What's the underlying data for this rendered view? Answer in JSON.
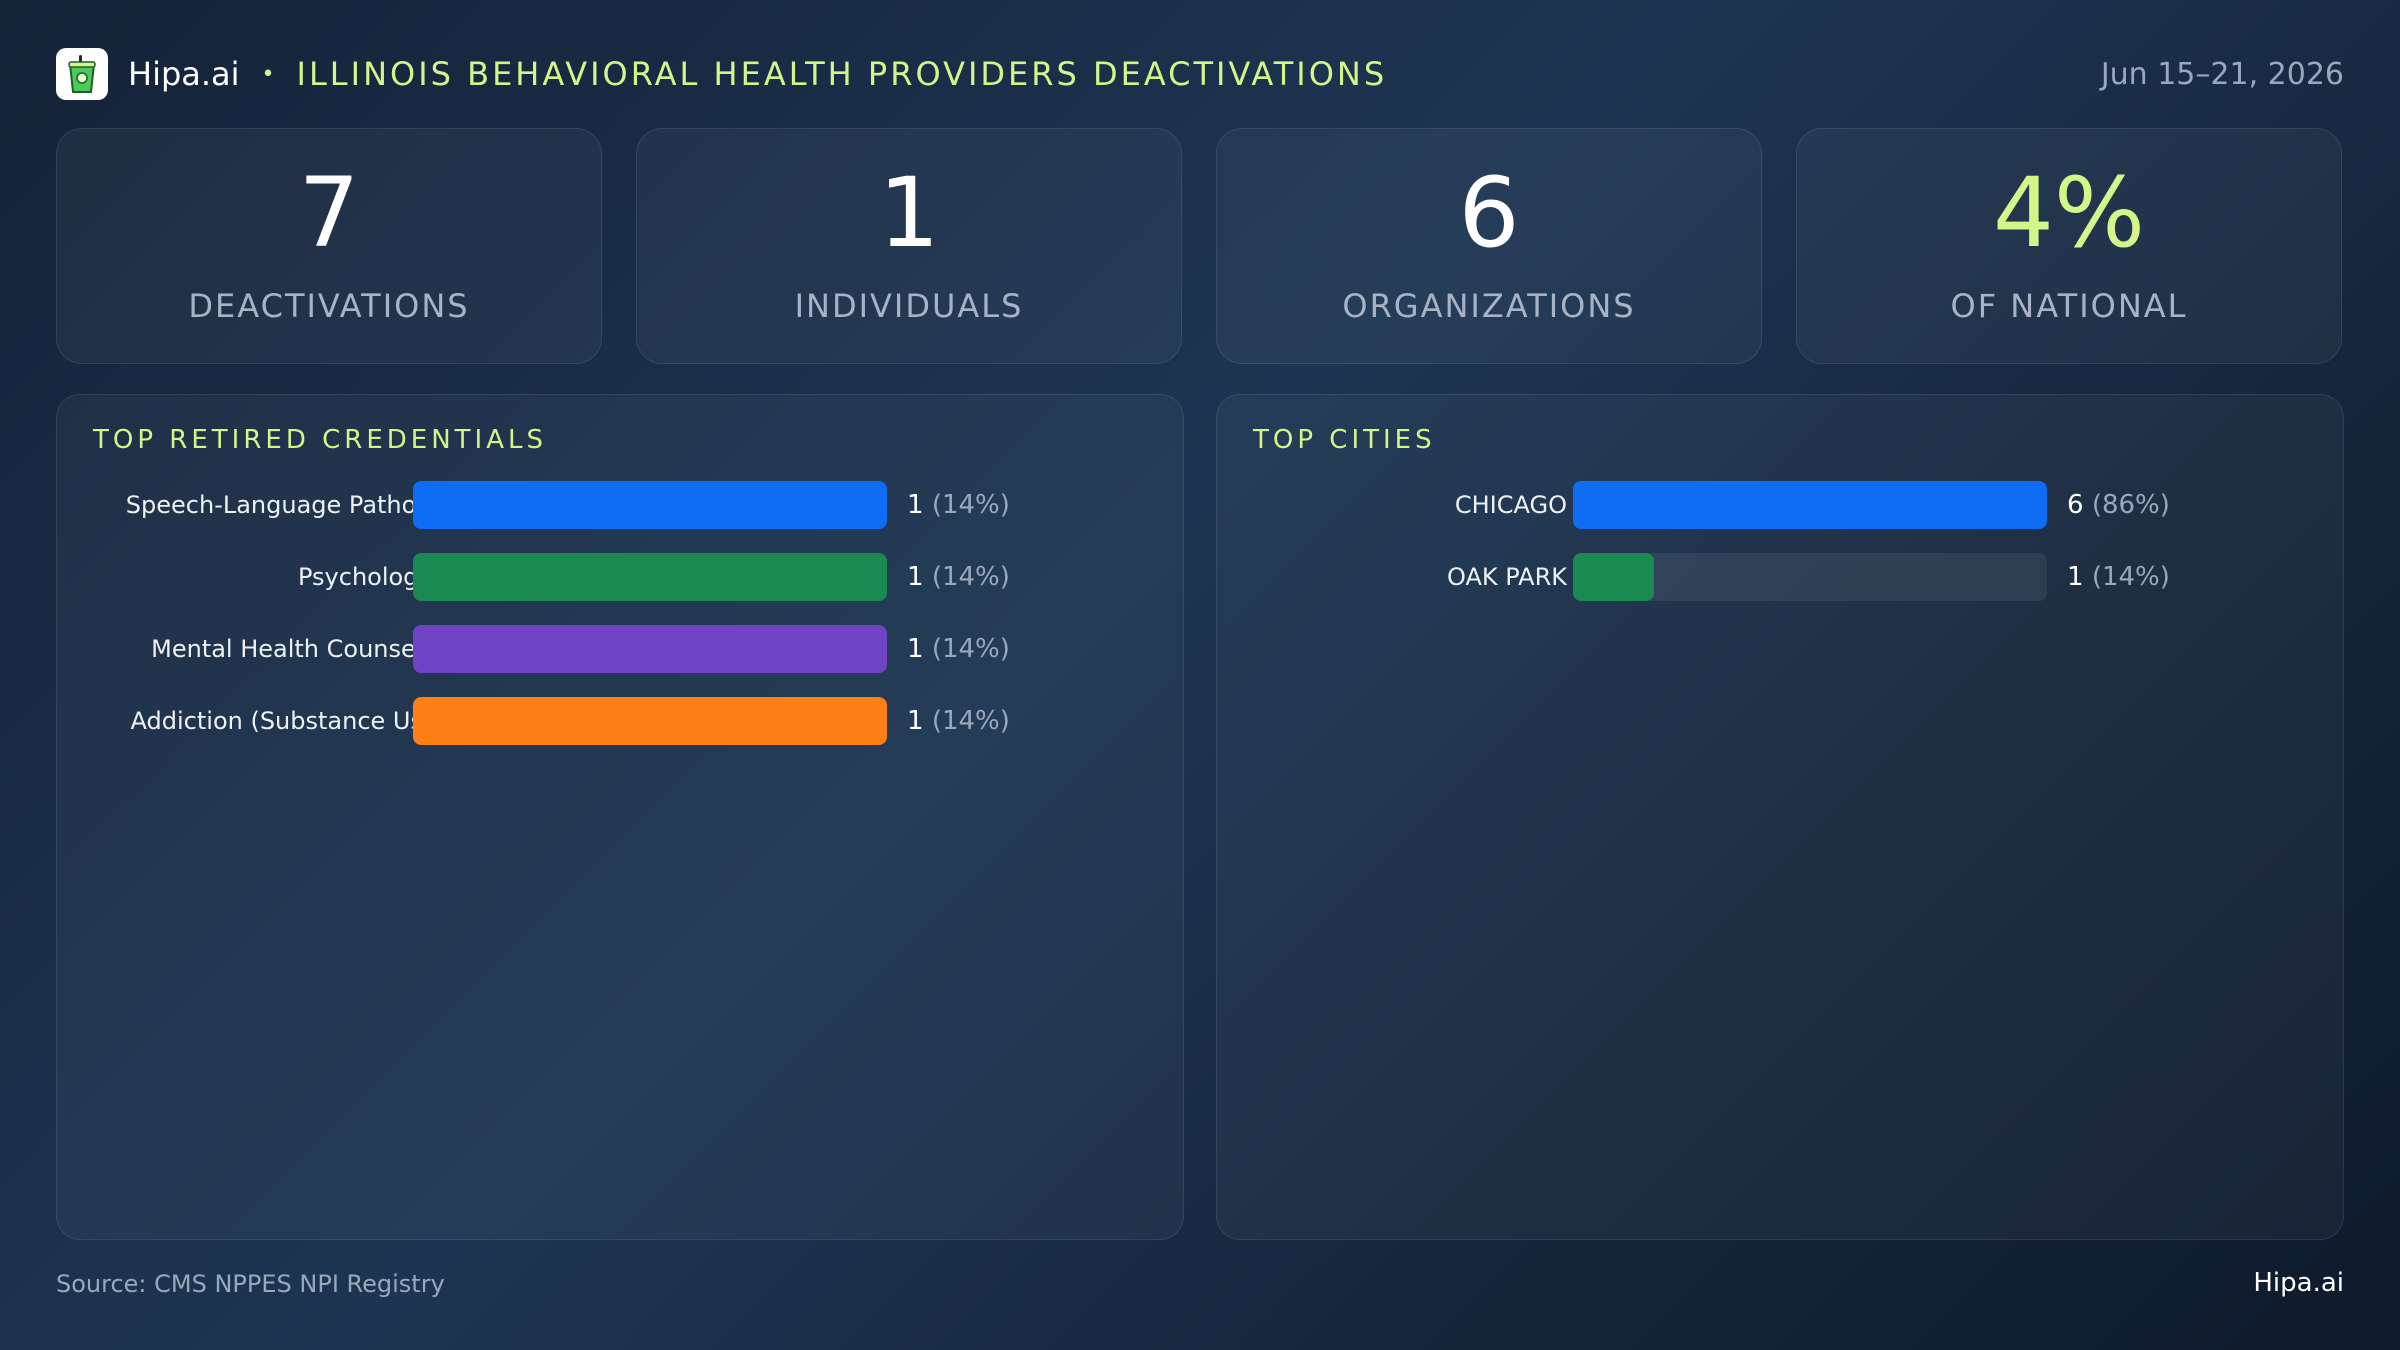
{
  "header": {
    "brand": "Hipa.ai",
    "separator": "•",
    "title": "ILLINOIS BEHAVIORAL HEALTH PROVIDERS DEACTIVATIONS",
    "date_range": "Jun 15–21, 2026",
    "logo_icon": "cup-icon"
  },
  "stats": [
    {
      "value": "7",
      "label": "DEACTIVATIONS"
    },
    {
      "value": "1",
      "label": "INDIVIDUALS"
    },
    {
      "value": "6",
      "label": "ORGANIZATIONS"
    },
    {
      "value": "4%",
      "label": "OF NATIONAL"
    }
  ],
  "credentials_panel": {
    "title": "TOP RETIRED CREDENTIALS",
    "items": [
      {
        "label": "Speech-Language Pathol…",
        "value": 1,
        "value_text": "1",
        "pct_text": "(14%)",
        "fill_fraction": 1.0,
        "color": "#0f6cf5"
      },
      {
        "label": "Psychologist",
        "value": 1,
        "value_text": "1",
        "pct_text": "(14%)",
        "fill_fraction": 1.0,
        "color": "#1b8a52"
      },
      {
        "label": "Mental Health Counselor",
        "value": 1,
        "value_text": "1",
        "pct_text": "(14%)",
        "fill_fraction": 1.0,
        "color": "#6f44c4"
      },
      {
        "label": "Addiction (Substance Us…",
        "value": 1,
        "value_text": "1",
        "pct_text": "(14%)",
        "fill_fraction": 1.0,
        "color": "#ff7f17"
      }
    ]
  },
  "cities_panel": {
    "title": "TOP CITIES",
    "items": [
      {
        "label": "CHICAGO",
        "value": 6,
        "value_text": "6",
        "pct_text": "(86%)",
        "fill_fraction": 1.0,
        "color": "#0f6cf5"
      },
      {
        "label": "OAK PARK",
        "value": 1,
        "value_text": "1",
        "pct_text": "(14%)",
        "fill_fraction": 0.17,
        "color": "#1b8a52"
      }
    ]
  },
  "footer": {
    "source": "Source: CMS NPPES NPI Registry",
    "brand": "Hipa.ai"
  }
}
